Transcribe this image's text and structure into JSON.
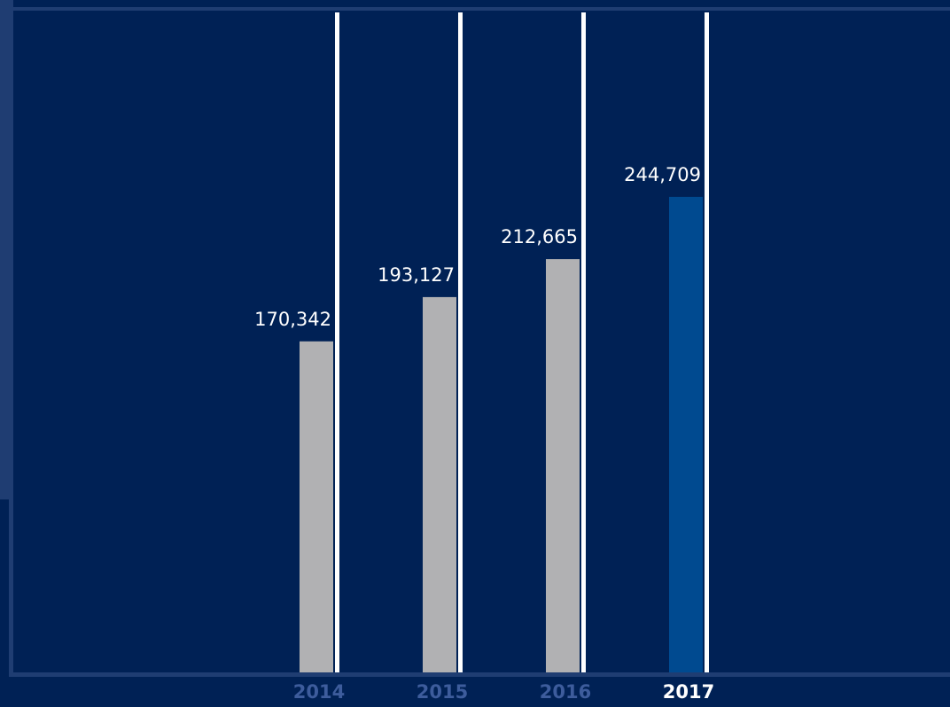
{
  "colors": {
    "background": "#002155",
    "frame": "#1f3d72",
    "bar_default": "#b1b1b3",
    "bar_highlight": "#004a90",
    "divider": "#ffffff",
    "value_label": "#ffffff",
    "year_label": "#3d5c9c",
    "year_label_highlight": "#ffffff"
  },
  "chart_data": {
    "type": "bar",
    "categories": [
      "2014",
      "2015",
      "2016",
      "2017"
    ],
    "values": [
      170342,
      193127,
      212665,
      244709
    ],
    "value_labels": [
      "170,342",
      "193,127",
      "212,665",
      "244,709"
    ],
    "highlight_category": "2017",
    "ylim": [
      0,
      346000
    ],
    "title": "",
    "xlabel": "",
    "ylabel": "",
    "grid": false,
    "legend": "none"
  }
}
